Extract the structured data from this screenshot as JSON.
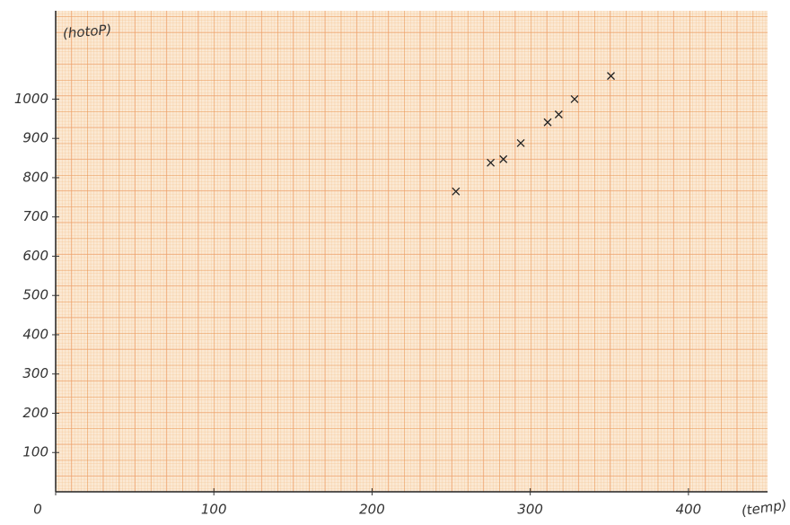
{
  "chart_data": {
    "type": "scatter",
    "y_label": "(hotoP)",
    "x_label": "(temp)",
    "x": [
      253,
      275,
      283,
      294,
      311,
      318,
      328,
      351
    ],
    "values": [
      765,
      838,
      847,
      888,
      941,
      961,
      1000,
      1059
    ],
    "color": "#222222",
    "xlim": [
      0,
      450
    ],
    "ylim": [
      0,
      1225
    ],
    "xticks": [
      0,
      100,
      200,
      300,
      400
    ],
    "yticks": [
      100,
      200,
      300,
      400,
      500,
      600,
      700,
      800,
      900,
      1000
    ]
  }
}
